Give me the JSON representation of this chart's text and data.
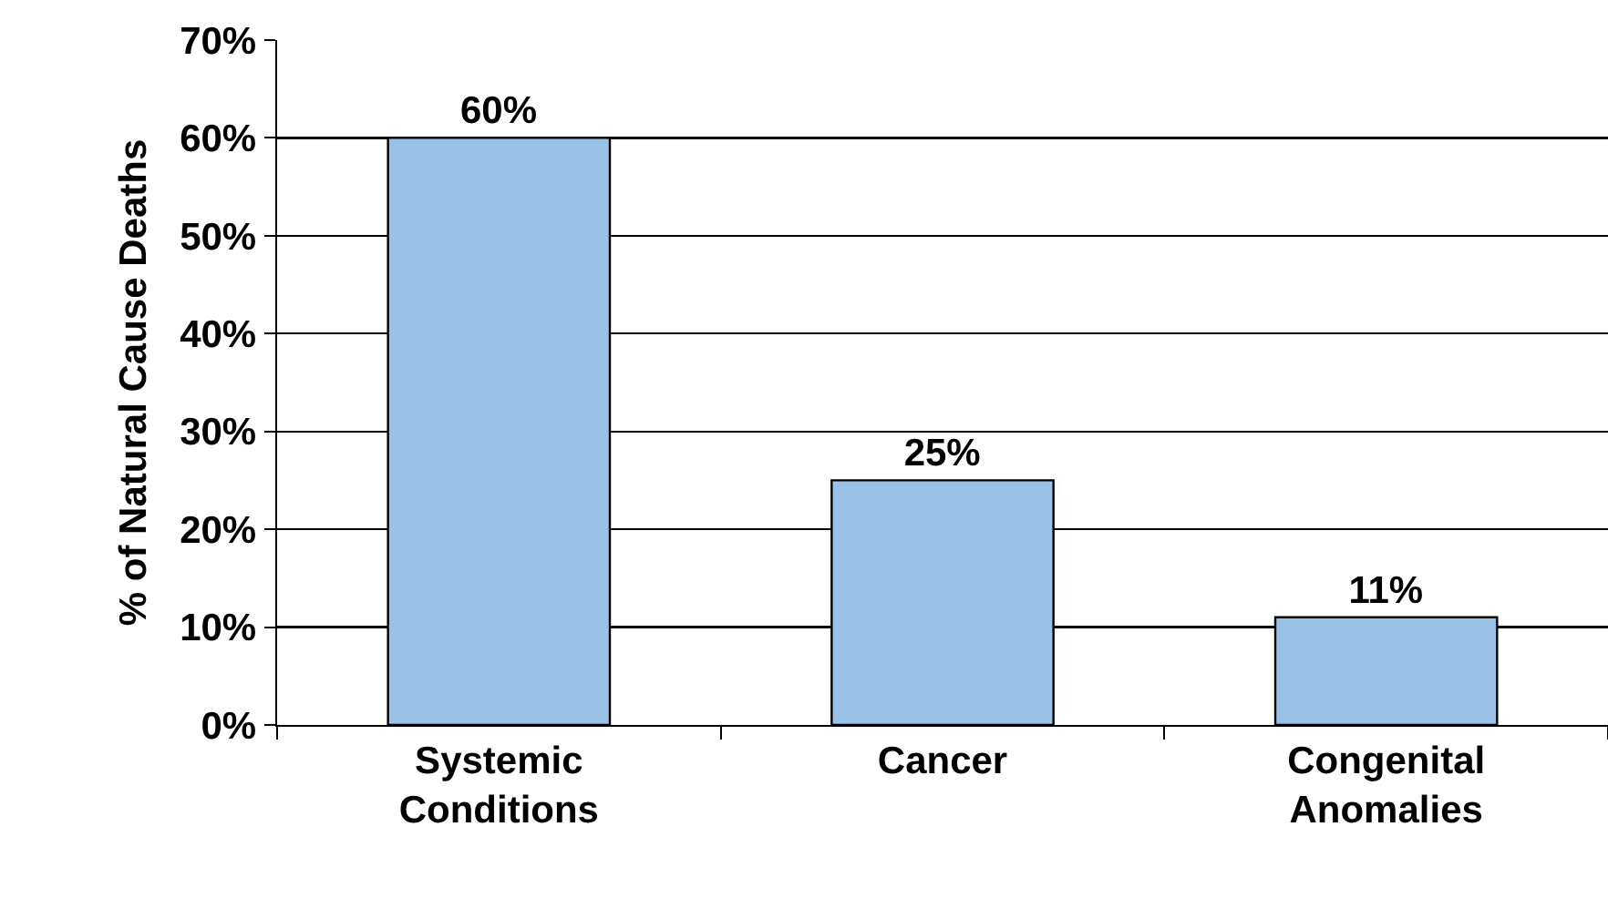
{
  "chart_data": {
    "type": "bar",
    "ylabel": "% of Natural Cause Deaths",
    "categories": [
      "Systemic Conditions",
      "Cancer",
      "Congenital Anomalies"
    ],
    "values": [
      60,
      25,
      11
    ],
    "value_labels": [
      "60%",
      "25%",
      "11%"
    ],
    "color": "#99c2e6",
    "ylim": [
      0,
      70
    ],
    "yticks": [
      {
        "value": 0,
        "label": "0%"
      },
      {
        "value": 10,
        "label": "10%"
      },
      {
        "value": 20,
        "label": "20%"
      },
      {
        "value": 30,
        "label": "30%"
      },
      {
        "value": 40,
        "label": "40%"
      },
      {
        "value": 50,
        "label": "50%"
      },
      {
        "value": 60,
        "label": "60%"
      },
      {
        "value": 70,
        "label": "70%"
      }
    ],
    "grid": "y"
  }
}
